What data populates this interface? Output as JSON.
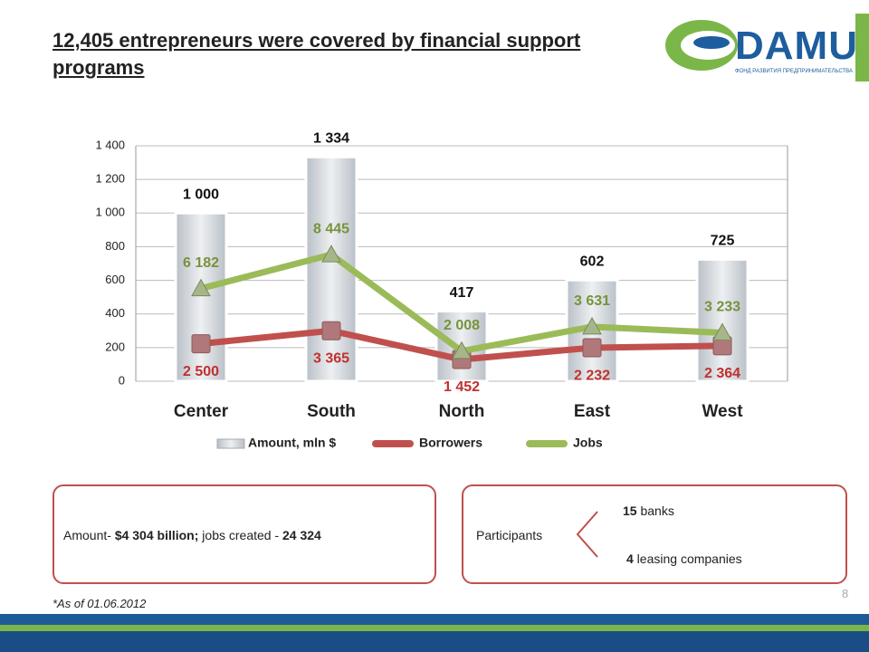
{
  "header": {
    "title": "12,405 entrepreneurs were covered by financial support programs",
    "logo": "DAMU",
    "logo_subtitle": "ФОНД РАЗВИТИЯ ПРЕДПРИНИМАТЕЛЬСТВА"
  },
  "chart_data": {
    "type": "bar",
    "categories": [
      "Center",
      "South",
      "North",
      "East",
      "West"
    ],
    "series": [
      {
        "name": "Amount, mln $",
        "type": "bar",
        "color": "#d4d9de",
        "values": [
          1000,
          1334,
          417,
          602,
          725
        ],
        "value_labels": [
          "1 000",
          "1 334",
          "417",
          "602",
          "725"
        ]
      },
      {
        "name": "Borrowers",
        "type": "line",
        "axis": "y2",
        "color": "#c0504d",
        "label_color": "#c0302e",
        "values": [
          2500,
          3365,
          1452,
          2232,
          2364
        ],
        "value_labels": [
          "2 500",
          "3 365",
          "1 452",
          "2 232",
          "2 364"
        ]
      },
      {
        "name": "Jobs",
        "type": "line",
        "axis": "y2",
        "color": "#9bbb59",
        "label_color": "#77933c",
        "values": [
          6182,
          8445,
          2008,
          3631,
          3233
        ],
        "value_labels": [
          "6 182",
          "8 445",
          "2 008",
          "3 631",
          "3 233"
        ]
      }
    ],
    "ylim": [
      0,
      1400
    ],
    "yticks": [
      0,
      200,
      400,
      600,
      800,
      {
        "value": 1000,
        "label": "1 000"
      },
      {
        "value": 1200,
        "label": "1 200"
      },
      {
        "value": 1400,
        "label": "1 400"
      }
    ],
    "y2lim": [
      0,
      15700
    ],
    "grid": true,
    "legend": "bottom"
  },
  "summary": {
    "prefix": "Amount- ",
    "amount": "$4 304 billion;",
    "middle": " jobs created - ",
    "jobs": "24 324"
  },
  "participants": {
    "label": "Participants",
    "banks_count": "15",
    "banks": " banks",
    "leasing_count": "4",
    "leasing": " leasing companies"
  },
  "footnote": "*As of 01.06.2012",
  "page_number": "8"
}
